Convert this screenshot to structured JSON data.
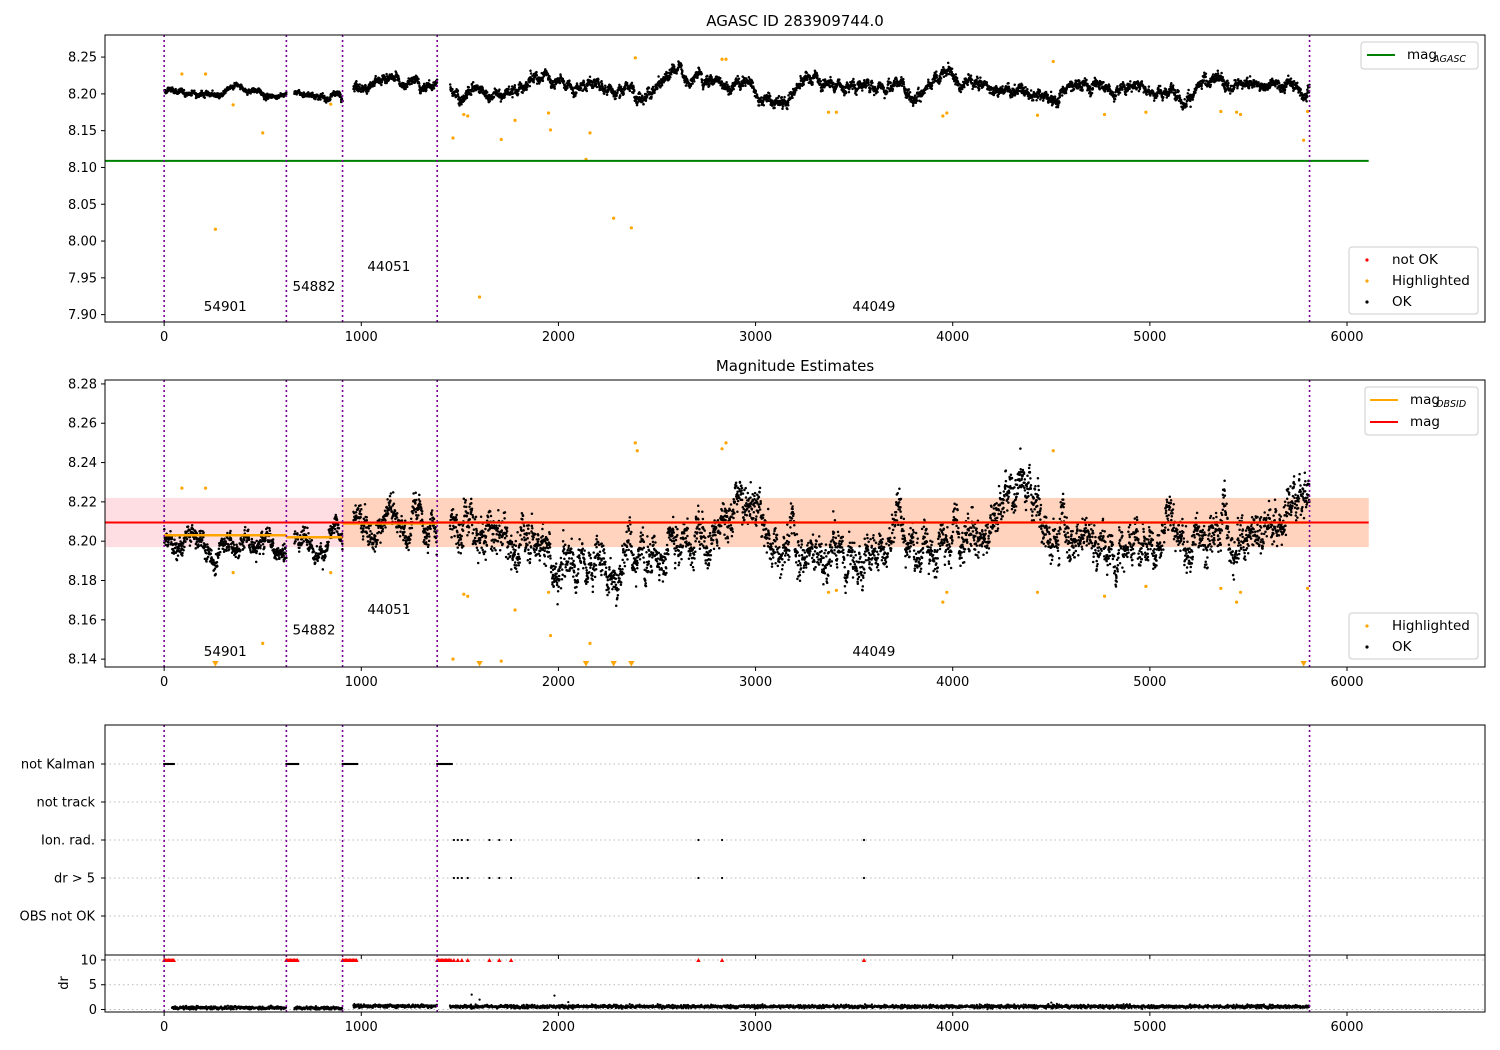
{
  "colors": {
    "ok": "#000000",
    "highlighted": "#ffa500",
    "not_ok": "#ff0000",
    "mag_agasc_line": "#008000",
    "mag_obsid_line": "#ffa500",
    "mag_line": "#ff0000",
    "vertical_lines": "#7b0099",
    "band_pink": "#ffb6c1",
    "band_orange": "#ffc89a"
  },
  "chart_data": [
    {
      "type": "scatter",
      "title": "AGASC ID 283909744.0",
      "xlim": [
        -300,
        6700
      ],
      "ylim": [
        7.89,
        8.28
      ],
      "x_ticks": [
        0,
        1000,
        2000,
        3000,
        4000,
        5000,
        6000
      ],
      "y_ticks": [
        7.9,
        7.95,
        8.0,
        8.05,
        8.1,
        8.15,
        8.2,
        8.25
      ],
      "y_tick_labels": [
        "7.90",
        "7.95",
        "8.00",
        "8.05",
        "8.10",
        "8.15",
        "8.20",
        "8.25"
      ],
      "mag_agasc": 8.109,
      "mag_agasc_xrange": [
        -300,
        6110
      ],
      "obsid_boundaries": [
        0,
        620,
        905,
        1385,
        5810
      ],
      "obsid_labels": [
        {
          "text": "54901",
          "x": 310,
          "y": 7.905
        },
        {
          "text": "54882",
          "x": 760,
          "y": 7.932
        },
        {
          "text": "44051",
          "x": 1140,
          "y": 7.959
        },
        {
          "text": "44049",
          "x": 3600,
          "y": 7.905
        }
      ],
      "ok_segments": [
        {
          "x": [
            0,
            620
          ],
          "mean": 8.203,
          "spread": 0.006
        },
        {
          "x": [
            660,
            905
          ],
          "mean": 8.201,
          "spread": 0.006
        },
        {
          "x": [
            960,
            1385
          ],
          "mean": 8.21,
          "spread": 0.01
        },
        {
          "x": [
            1450,
            5810
          ],
          "mean": 8.21,
          "spread": 0.012
        }
      ],
      "highlighted_points": [
        [
          90,
          8.227
        ],
        [
          210,
          8.227
        ],
        [
          260,
          8.016
        ],
        [
          350,
          8.185
        ],
        [
          500,
          8.147
        ],
        [
          845,
          8.186
        ],
        [
          1465,
          8.14
        ],
        [
          1520,
          8.172
        ],
        [
          1540,
          8.17
        ],
        [
          1600,
          7.924
        ],
        [
          1710,
          8.138
        ],
        [
          1780,
          8.164
        ],
        [
          1950,
          8.174
        ],
        [
          1960,
          8.151
        ],
        [
          2140,
          8.111
        ],
        [
          2160,
          8.147
        ],
        [
          2280,
          8.031
        ],
        [
          2370,
          8.018
        ],
        [
          2390,
          8.249
        ],
        [
          2830,
          8.247
        ],
        [
          2850,
          8.247
        ],
        [
          3370,
          8.175
        ],
        [
          3410,
          8.175
        ],
        [
          3950,
          8.17
        ],
        [
          3970,
          8.174
        ],
        [
          4430,
          8.171
        ],
        [
          4510,
          8.244
        ],
        [
          4770,
          8.172
        ],
        [
          4980,
          8.175
        ],
        [
          5360,
          8.176
        ],
        [
          5440,
          8.175
        ],
        [
          5460,
          8.172
        ],
        [
          5780,
          8.137
        ],
        [
          5800,
          8.176
        ]
      ],
      "not_ok_points": [],
      "legends": {
        "lines": [
          {
            "label": "mag",
            "subscript": "AGASC"
          }
        ],
        "markers": [
          {
            "label": "not OK"
          },
          {
            "label": "Highlighted"
          },
          {
            "label": "OK"
          }
        ]
      }
    },
    {
      "type": "scatter",
      "title": "Magnitude Estimates",
      "xlim": [
        -300,
        6700
      ],
      "ylim": [
        8.136,
        8.282
      ],
      "x_ticks": [
        0,
        1000,
        2000,
        3000,
        4000,
        5000,
        6000
      ],
      "y_ticks": [
        8.14,
        8.16,
        8.18,
        8.2,
        8.22,
        8.24,
        8.26,
        8.28
      ],
      "y_tick_labels": [
        "8.14",
        "8.16",
        "8.18",
        "8.20",
        "8.22",
        "8.24",
        "8.26",
        "8.28"
      ],
      "mag": 8.2095,
      "mag_band": [
        8.197,
        8.222
      ],
      "mag_obsid": [
        {
          "x": [
            0,
            620
          ],
          "value": 8.203
        },
        {
          "x": [
            620,
            905
          ],
          "value": 8.202
        },
        {
          "x": [
            905,
            1385
          ],
          "value": 8.209
        },
        {
          "x": [
            1385,
            5810
          ],
          "value": 8.2095
        }
      ],
      "obsid_band": {
        "x": [
          905,
          6110
        ],
        "range": [
          8.197,
          8.222
        ]
      },
      "band_xrange": [
        -300,
        6110
      ],
      "obsid_boundaries": [
        0,
        620,
        905,
        1385,
        5810
      ],
      "obsid_labels": [
        {
          "text": "54901",
          "x": 310,
          "y": 8.1415
        },
        {
          "text": "54882",
          "x": 760,
          "y": 8.1525
        },
        {
          "text": "44051",
          "x": 1140,
          "y": 8.163
        },
        {
          "text": "44049",
          "x": 3600,
          "y": 8.1415
        }
      ],
      "ok_segments": [
        {
          "x": [
            0,
            620
          ],
          "mean": 8.203,
          "spread": 0.008
        },
        {
          "x": [
            660,
            905
          ],
          "mean": 8.202,
          "spread": 0.008
        },
        {
          "x": [
            960,
            1385
          ],
          "mean": 8.209,
          "spread": 0.012
        },
        {
          "x": [
            1450,
            5810
          ],
          "mean": 8.21,
          "spread": 0.016
        }
      ],
      "highlighted_points": [
        [
          90,
          8.227
        ],
        [
          210,
          8.227
        ],
        [
          350,
          8.184
        ],
        [
          500,
          8.148
        ],
        [
          845,
          8.184
        ],
        [
          1465,
          8.14
        ],
        [
          1520,
          8.173
        ],
        [
          1540,
          8.172
        ],
        [
          1710,
          8.139
        ],
        [
          1780,
          8.165
        ],
        [
          1950,
          8.174
        ],
        [
          1960,
          8.152
        ],
        [
          2160,
          8.148
        ],
        [
          2390,
          8.25
        ],
        [
          2400,
          8.246
        ],
        [
          2830,
          8.247
        ],
        [
          2850,
          8.25
        ],
        [
          3370,
          8.174
        ],
        [
          3410,
          8.175
        ],
        [
          3950,
          8.169
        ],
        [
          3970,
          8.174
        ],
        [
          4430,
          8.174
        ],
        [
          4510,
          8.246
        ],
        [
          4770,
          8.172
        ],
        [
          4980,
          8.177
        ],
        [
          5360,
          8.176
        ],
        [
          5440,
          8.169
        ],
        [
          5460,
          8.174
        ],
        [
          5800,
          8.176
        ]
      ],
      "clipped_points": [
        260,
        1600,
        2140,
        2280,
        2370,
        5780
      ],
      "legends": {
        "lines": [
          {
            "label": "mag",
            "subscript": "OBSID"
          },
          {
            "label": "mag",
            "subscript": ""
          }
        ],
        "markers": [
          {
            "label": "Highlighted"
          },
          {
            "label": "OK"
          }
        ]
      }
    },
    {
      "type": "scatter",
      "xlim": [
        -300,
        6700
      ],
      "x_ticks": [
        0,
        1000,
        2000,
        3000,
        4000,
        5000,
        6000
      ],
      "flag_rows": [
        "not Kalman",
        "not track",
        "Ion. rad.",
        "dr > 5",
        "OBS not OK"
      ],
      "flag_points": {
        "not Kalman": [
          [
            0,
            50
          ],
          [
            620,
            680
          ],
          [
            905,
            980
          ],
          [
            1385,
            1460
          ]
        ],
        "not track": [],
        "Ion. rad.": [
          1470,
          1490,
          1510,
          1540,
          1650,
          1700,
          1760,
          2710,
          2830,
          3550
        ],
        "dr > 5": [
          1470,
          1490,
          1510,
          1540,
          1650,
          1700,
          1760,
          2710,
          2830,
          3550
        ],
        "OBS not OK": []
      },
      "obsid_boundaries": [
        0,
        620,
        905,
        1385,
        5810
      ]
    },
    {
      "type": "scatter",
      "ylabel": "dr",
      "xlim": [
        -300,
        6700
      ],
      "ylim": [
        -0.5,
        11
      ],
      "x_ticks": [
        0,
        1000,
        2000,
        3000,
        4000,
        5000,
        6000
      ],
      "y_ticks": [
        0,
        5,
        10
      ],
      "y_tick_labels": [
        "0",
        "5",
        "10"
      ],
      "dr_segments": [
        {
          "x": [
            40,
            620
          ],
          "mean": 0.35
        },
        {
          "x": [
            660,
            905
          ],
          "mean": 0.3
        },
        {
          "x": [
            960,
            1385
          ],
          "mean": 0.7
        },
        {
          "x": [
            1450,
            5810
          ],
          "mean": 0.6
        }
      ],
      "dr_outliers": [
        [
          1980,
          2.8
        ],
        [
          1600,
          2.0
        ],
        [
          1560,
          3.0
        ],
        [
          2050,
          1.5
        ],
        [
          4500,
          1.4
        ]
      ],
      "dr_clipped_x": [
        [
          0,
          50
        ],
        [
          620,
          680
        ],
        [
          905,
          980
        ],
        [
          1385,
          1460
        ],
        1470,
        1490,
        1510,
        1540,
        1650,
        1700,
        1760,
        2710,
        2830,
        3550
      ],
      "obsid_boundaries": [
        0,
        620,
        905,
        1385,
        5810
      ]
    }
  ]
}
